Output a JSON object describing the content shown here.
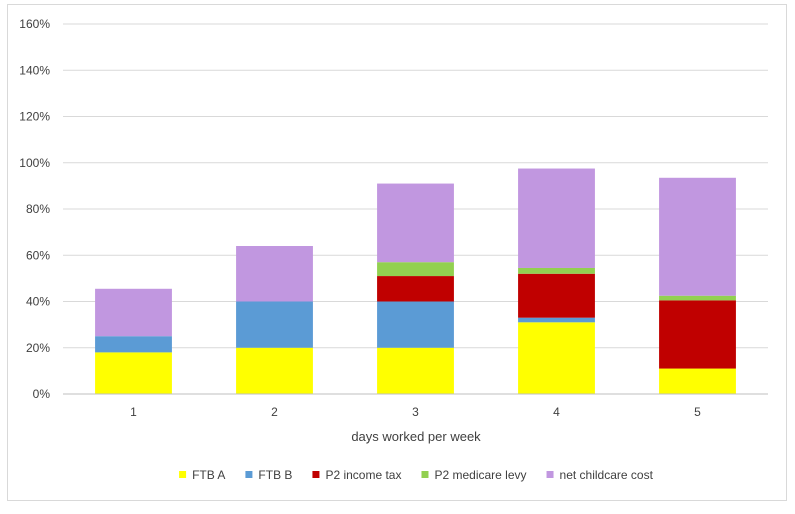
{
  "chart_data": {
    "type": "bar",
    "stacked": true,
    "title": "",
    "xlabel": "days worked per week",
    "ylabel": "",
    "categories": [
      "1",
      "2",
      "3",
      "4",
      "5"
    ],
    "ylim": [
      0,
      160
    ],
    "yticks": [
      0,
      20,
      40,
      60,
      80,
      100,
      120,
      140,
      160
    ],
    "ytick_labels": [
      "0%",
      "20%",
      "40%",
      "60%",
      "80%",
      "100%",
      "120%",
      "140%",
      "160%"
    ],
    "grid": true,
    "legend_position": "bottom",
    "series": [
      {
        "name": "FTB A",
        "color": "#ffff00",
        "values": [
          18,
          20,
          20,
          31,
          11
        ]
      },
      {
        "name": "FTB B",
        "color": "#5b9bd5",
        "values": [
          7,
          20,
          20,
          2,
          0
        ]
      },
      {
        "name": "P2 income tax",
        "color": "#c00000",
        "values": [
          0,
          0,
          11,
          19,
          29.5
        ]
      },
      {
        "name": "P2 medicare levy",
        "color": "#92d050",
        "values": [
          0,
          0,
          6,
          2.5,
          2
        ]
      },
      {
        "name": "net childcare cost",
        "color": "#c197e0",
        "values": [
          20.5,
          24,
          34,
          43,
          51
        ]
      }
    ]
  }
}
